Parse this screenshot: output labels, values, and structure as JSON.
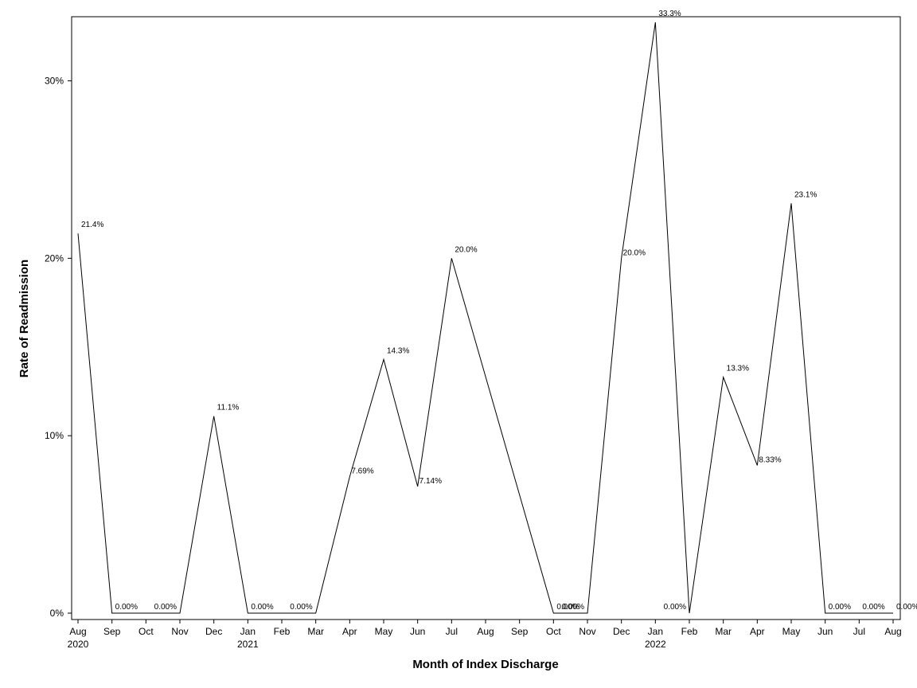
{
  "chart_data": {
    "type": "line",
    "xlabel": "Month of Index Discharge",
    "ylabel": "Rate of Readmission",
    "ylim": [
      0,
      33.3
    ],
    "yticks": [
      0,
      10,
      20,
      30
    ],
    "ytick_labels": [
      "0%",
      "10%",
      "20%",
      "30%"
    ],
    "grid": false,
    "legend": "none",
    "line_color": "#000000",
    "x_month_labels": [
      "Aug",
      "Sep",
      "Oct",
      "Nov",
      "Dec",
      "Jan",
      "Feb",
      "Mar",
      "Apr",
      "May",
      "Jun",
      "Jul",
      "Aug",
      "Sep",
      "Oct",
      "Nov",
      "Dec",
      "Jan",
      "Feb",
      "Mar",
      "Apr",
      "May",
      "Jun",
      "Jul",
      "Aug"
    ],
    "x_year_labels": [
      "2020",
      "2021",
      "2022"
    ],
    "points": [
      {
        "x": "2020-08",
        "y": 21.4,
        "label": "21.4%"
      },
      {
        "x": "2020-09",
        "y": 0,
        "label": "0.00%"
      },
      {
        "x": "2020-10",
        "y": 0,
        "label": ""
      },
      {
        "x": "2020-11",
        "y": 0,
        "label": "0.00%"
      },
      {
        "x": "2020-12",
        "y": 11.1,
        "label": "11.1%"
      },
      {
        "x": "2021-01",
        "y": 0,
        "label": "0.00%"
      },
      {
        "x": "2021-02",
        "y": 0,
        "label": ""
      },
      {
        "x": "2021-03",
        "y": 0,
        "label": "0.00%"
      },
      {
        "x": "2021-04",
        "y": 7.69,
        "label": "7.69%"
      },
      {
        "x": "2021-05",
        "y": 14.3,
        "label": "14.3%"
      },
      {
        "x": "2021-06",
        "y": 7.14,
        "label": "7.14%"
      },
      {
        "x": "2021-07",
        "y": 20.0,
        "label": "20.0%"
      },
      {
        "x": "2021-10",
        "y": 0,
        "label": "0.00%"
      },
      {
        "x": "2021-11",
        "y": 0,
        "label": "0.00%"
      },
      {
        "x": "2021-12",
        "y": 20.0,
        "label": "20.0%"
      },
      {
        "x": "2022-01",
        "y": 33.3,
        "label": "33.3%"
      },
      {
        "x": "2022-02",
        "y": 0,
        "label": "0.00%"
      },
      {
        "x": "2022-03",
        "y": 13.3,
        "label": "13.3%"
      },
      {
        "x": "2022-04",
        "y": 8.33,
        "label": "8.33%"
      },
      {
        "x": "2022-05",
        "y": 23.1,
        "label": "23.1%"
      },
      {
        "x": "2022-06",
        "y": 0,
        "label": "0.00%"
      },
      {
        "x": "2022-07",
        "y": 0,
        "label": "0.00%"
      },
      {
        "x": "2022-08",
        "y": 0,
        "label": "0.00%"
      }
    ]
  }
}
